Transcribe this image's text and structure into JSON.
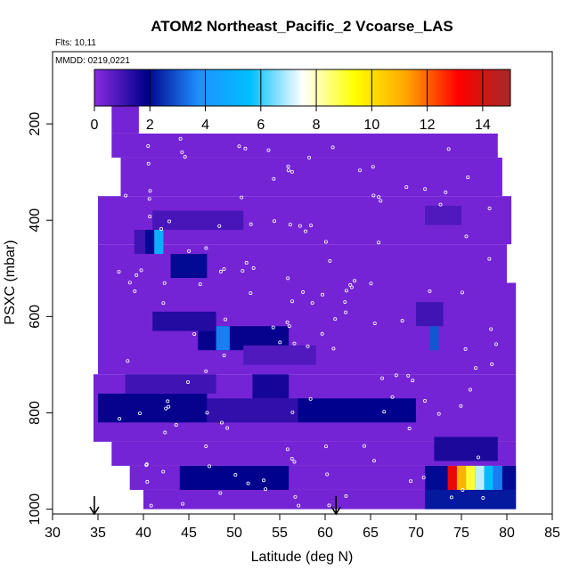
{
  "chart_data": {
    "type": "heatmap",
    "title": "ATOM2 Northeast_Pacific_2 Vcoarse_LAS",
    "flights_label": "Flts: 10,11",
    "dates_label": "MMDD: 0219,0221",
    "xlabel": "Latitude (deg N)",
    "ylabel": "PSXC (mbar)",
    "xlim": [
      30,
      85
    ],
    "ylim": [
      1010,
      50
    ],
    "y_inverted": true,
    "x_ticks": [
      "30",
      "35",
      "40",
      "45",
      "50",
      "55",
      "60",
      "65",
      "70",
      "75",
      "80",
      "85"
    ],
    "y_ticks": [
      "200",
      "400",
      "600",
      "800",
      "1000"
    ],
    "colorbar": {
      "range": [
        0,
        15
      ],
      "ticks": [
        "0",
        "2",
        "4",
        "6",
        "8",
        "10",
        "12",
        "14"
      ],
      "stops": [
        "#8a2be2",
        "#00008b",
        "#1e90ff",
        "#00bfff",
        "#ffffff",
        "#ffff00",
        "#ffa500",
        "#ff0000",
        "#a52a2a"
      ]
    },
    "background_value": 0.3,
    "envelope": [
      {
        "lat0": 36.5,
        "lat1": 39.5,
        "p0": 160,
        "p1": 220
      },
      {
        "lat0": 36.5,
        "lat1": 79.0,
        "p0": 220,
        "p1": 270
      },
      {
        "lat0": 37.5,
        "lat1": 79.5,
        "p0": 270,
        "p1": 350
      },
      {
        "lat0": 35.0,
        "lat1": 80.5,
        "p0": 350,
        "p1": 450
      },
      {
        "lat0": 35.0,
        "lat1": 80.0,
        "p0": 450,
        "p1": 530
      },
      {
        "lat0": 35.0,
        "lat1": 81.0,
        "p0": 530,
        "p1": 720
      },
      {
        "lat0": 34.5,
        "lat1": 81.0,
        "p0": 720,
        "p1": 860
      },
      {
        "lat0": 36.5,
        "lat1": 81.0,
        "p0": 860,
        "p1": 910
      },
      {
        "lat0": 38.5,
        "lat1": 81.0,
        "p0": 910,
        "p1": 960
      },
      {
        "lat0": 40.0,
        "lat1": 81.0,
        "p0": 960,
        "p1": 1000
      }
    ],
    "cells": [
      {
        "lat0": 40.2,
        "lat1": 41.2,
        "p0": 420,
        "p1": 470,
        "value": 2.0
      },
      {
        "lat0": 41.2,
        "lat1": 42.2,
        "p0": 420,
        "p1": 470,
        "value": 5.0
      },
      {
        "lat0": 39.0,
        "lat1": 40.2,
        "p0": 420,
        "p1": 470,
        "value": 1.0
      },
      {
        "lat0": 43.0,
        "lat1": 47.0,
        "p0": 470,
        "p1": 520,
        "value": 2.0
      },
      {
        "lat0": 41.0,
        "lat1": 51.0,
        "p0": 380,
        "p1": 420,
        "value": 0.9
      },
      {
        "lat0": 46.0,
        "lat1": 56.0,
        "p0": 620,
        "p1": 670,
        "value": 1.8
      },
      {
        "lat0": 48.0,
        "lat1": 49.5,
        "p0": 620,
        "p1": 670,
        "value": 3.5
      },
      {
        "lat0": 41.0,
        "lat1": 48.0,
        "p0": 590,
        "p1": 630,
        "value": 1.4
      },
      {
        "lat0": 51.0,
        "lat1": 59.0,
        "p0": 660,
        "p1": 700,
        "value": 0.8
      },
      {
        "lat0": 35.0,
        "lat1": 47.0,
        "p0": 760,
        "p1": 820,
        "value": 1.8
      },
      {
        "lat0": 47.0,
        "lat1": 57.0,
        "p0": 770,
        "p1": 820,
        "value": 1.2
      },
      {
        "lat0": 57.0,
        "lat1": 70.0,
        "p0": 770,
        "p1": 820,
        "value": 1.9
      },
      {
        "lat0": 38.0,
        "lat1": 48.0,
        "p0": 720,
        "p1": 760,
        "value": 1.0
      },
      {
        "lat0": 52.0,
        "lat1": 56.0,
        "p0": 720,
        "p1": 770,
        "value": 1.6
      },
      {
        "lat0": 71.0,
        "lat1": 73.5,
        "p0": 910,
        "p1": 960,
        "value": 2.0
      },
      {
        "lat0": 73.5,
        "lat1": 74.5,
        "p0": 910,
        "p1": 960,
        "value": 13.5
      },
      {
        "lat0": 74.5,
        "lat1": 75.5,
        "p0": 910,
        "p1": 960,
        "value": 11.0
      },
      {
        "lat0": 75.5,
        "lat1": 76.5,
        "p0": 910,
        "p1": 960,
        "value": 9.0
      },
      {
        "lat0": 76.5,
        "lat1": 77.5,
        "p0": 910,
        "p1": 960,
        "value": 7.0
      },
      {
        "lat0": 77.5,
        "lat1": 78.5,
        "p0": 910,
        "p1": 960,
        "value": 5.5
      },
      {
        "lat0": 78.5,
        "lat1": 79.5,
        "p0": 910,
        "p1": 960,
        "value": 3.5
      },
      {
        "lat0": 79.5,
        "lat1": 81.0,
        "p0": 910,
        "p1": 960,
        "value": 2.0
      },
      {
        "lat0": 44.0,
        "lat1": 56.0,
        "p0": 910,
        "p1": 960,
        "value": 1.9
      },
      {
        "lat0": 71.0,
        "lat1": 81.0,
        "p0": 960,
        "p1": 1000,
        "value": 2.2
      },
      {
        "lat0": 72.0,
        "lat1": 79.0,
        "p0": 850,
        "p1": 900,
        "value": 1.5
      },
      {
        "lat0": 71.5,
        "lat1": 72.5,
        "p0": 620,
        "p1": 670,
        "value": 3.0
      },
      {
        "lat0": 70.0,
        "lat1": 73.0,
        "p0": 570,
        "p1": 620,
        "value": 1.0
      },
      {
        "lat0": 71.0,
        "lat1": 75.0,
        "p0": 370,
        "p1": 410,
        "value": 0.8
      }
    ],
    "arrows": [
      34.6,
      61.2
    ]
  }
}
